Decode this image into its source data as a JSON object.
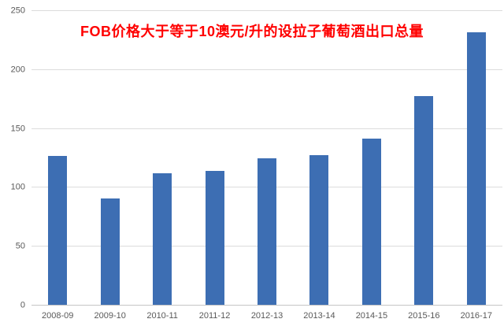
{
  "chart_data": {
    "type": "bar",
    "title": "FOB价格大于等于10澳元/升的设拉子葡萄酒出口总量",
    "categories": [
      "2008-09",
      "2009-10",
      "2010-11",
      "2011-12",
      "2012-13",
      "2013-14",
      "2014-15",
      "2015-16",
      "2016-17"
    ],
    "values": [
      127,
      91,
      112,
      114,
      125,
      128,
      142,
      178,
      232
    ],
    "xlabel": "",
    "ylabel": "",
    "ylim": [
      0,
      250
    ],
    "yticks": [
      0,
      50,
      100,
      150,
      200,
      250
    ],
    "grid": true,
    "legend": "none",
    "bar_color": "#3d6eb3",
    "title_color": "#ff0000",
    "tick_label_color": "#595959",
    "gridline_color": "#dcdcdc",
    "background_color": "#ffffff"
  }
}
